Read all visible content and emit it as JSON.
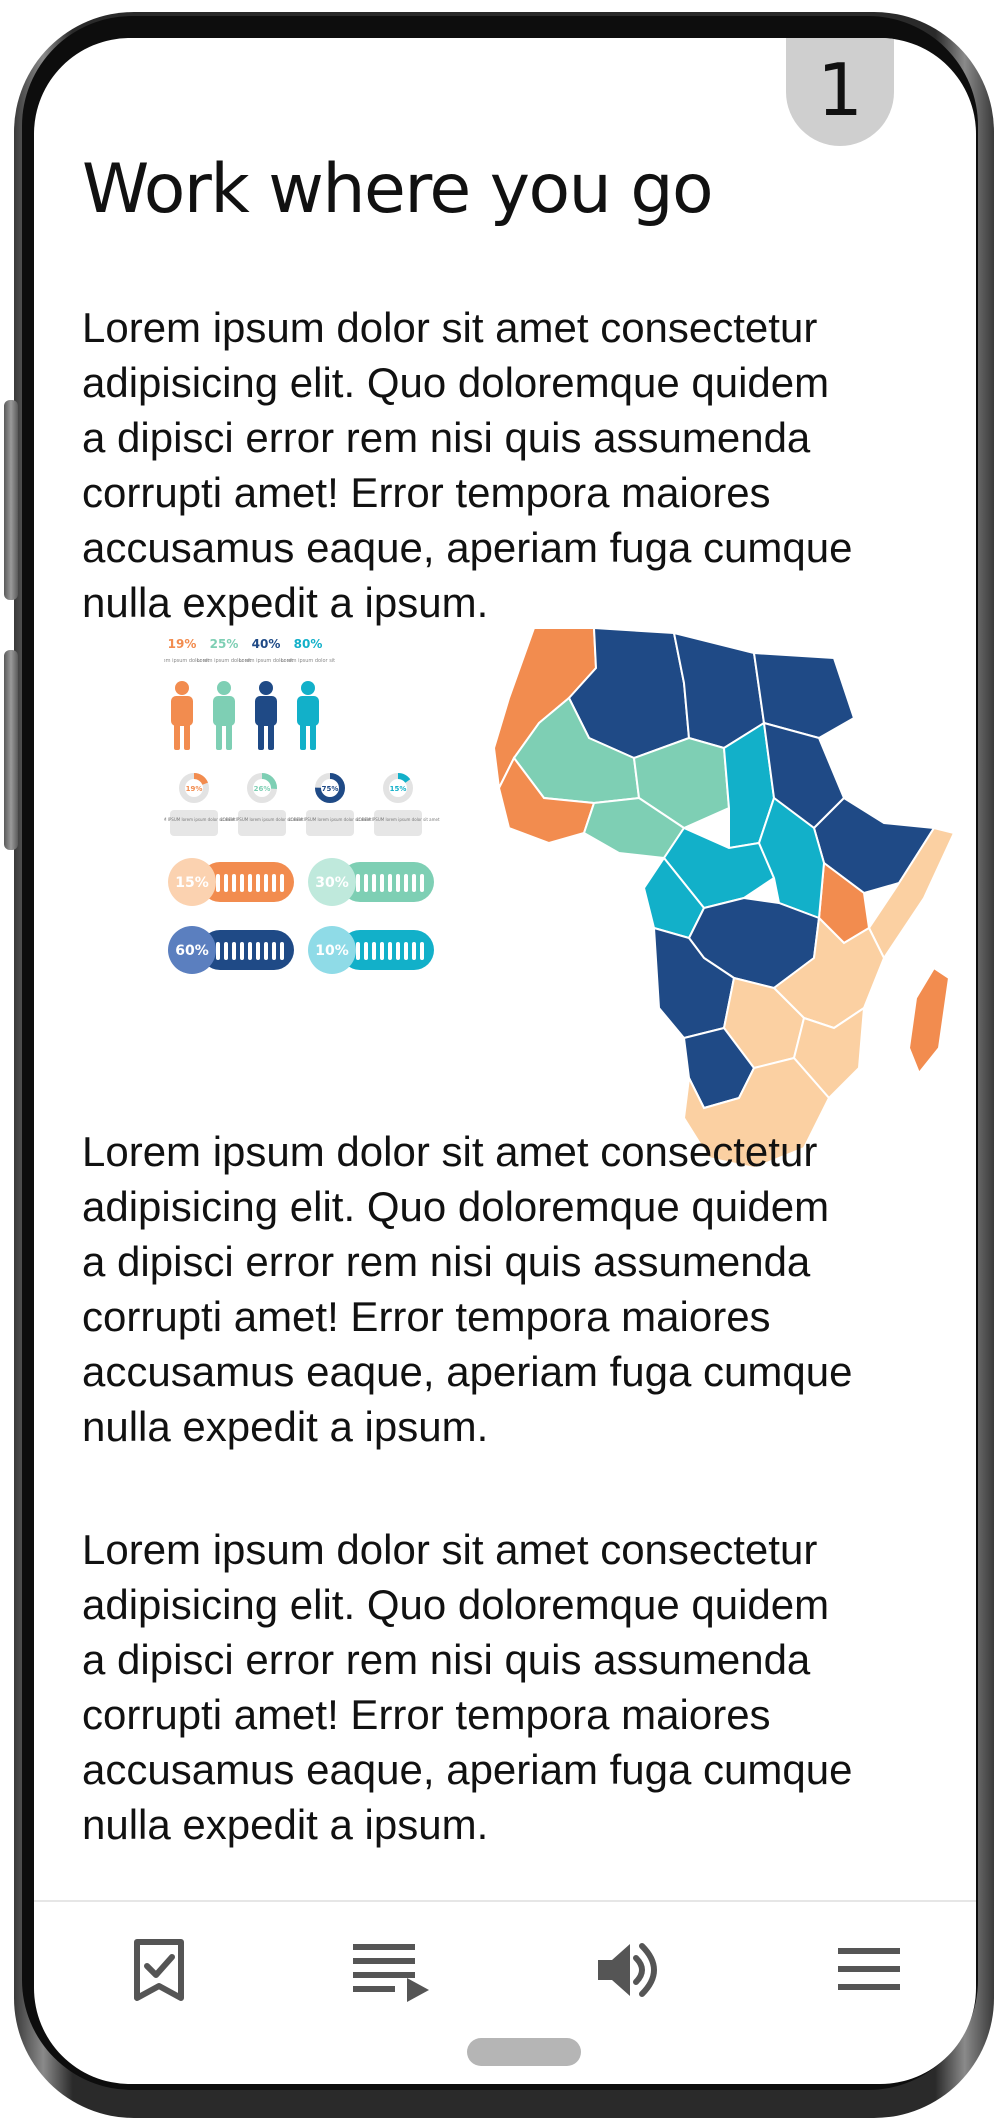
{
  "page": {
    "number": "1",
    "title": "Work where you go"
  },
  "paragraphs": [
    "Lorem ipsum dolor sit amet consectetur\n adipisicing elit. Quo doloremque quidem\na dipisci error rem nisi quis assumenda\ncorrupti amet! Error tempora maiores\naccusamus eaque, aperiam fuga cumque\nnulla expedit a ipsum.",
    "Lorem ipsum dolor sit amet consectetur\n adipisicing elit. Quo doloremque quidem\na dipisci error rem nisi quis assumenda\ncorrupti amet! Error tempora maiores\naccusamus eaque, aperiam fuga cumque\nnulla expedit a ipsum.",
    "Lorem ipsum dolor sit amet consectetur\n adipisicing elit. Quo doloremque quidem\na dipisci error rem nisi quis assumenda\ncorrupti amet! Error tempora maiores\naccusamus eaque, aperiam fuga cumque\nnulla expedit a ipsum."
  ],
  "infographic": {
    "people": [
      {
        "pct": "19%",
        "color": "#f28c4f",
        "caption": "Lorem ipsum dolor sit"
      },
      {
        "pct": "25%",
        "color": "#7ecfb4",
        "caption": "Lorem ipsum dolor sit"
      },
      {
        "pct": "40%",
        "color": "#1f4a86",
        "caption": "Lorem ipsum dolor sit"
      },
      {
        "pct": "80%",
        "color": "#12b0c9",
        "caption": "Lorem ipsum dolor sit"
      }
    ],
    "donuts": [
      {
        "pct": "19%",
        "value": 19,
        "color": "#f28c4f",
        "caption": "LOREM IPSUM lorem ipsum dolor sit amet"
      },
      {
        "pct": "26%",
        "value": 26,
        "color": "#7ecfb4",
        "caption": "LOREM IPSUM lorem ipsum dolor sit amet"
      },
      {
        "pct": "75%",
        "value": 75,
        "color": "#1f4a86",
        "caption": "LOREM IPSUM lorem ipsum dolor sit amet"
      },
      {
        "pct": "15%",
        "value": 15,
        "color": "#12b0c9",
        "caption": "LOREM IPSUM lorem ipsum dolor sit amet"
      }
    ],
    "pills": [
      {
        "pct": "15%",
        "color": "#f28c4f",
        "light": "#fbd2b0"
      },
      {
        "pct": "30%",
        "color": "#7ecfb4",
        "light": "#bfe9dc"
      },
      {
        "pct": "60%",
        "color": "#1f4a86",
        "light": "#5b7fbf"
      },
      {
        "pct": "10%",
        "color": "#12b0c9",
        "light": "#8fdbe7"
      }
    ],
    "map_colors": {
      "orange": "#f28c4f",
      "mint": "#7ecfb4",
      "navy": "#1f4a86",
      "cyan": "#12b0c9",
      "peach": "#fbd0a2"
    }
  },
  "nav": {
    "bookmark": "bookmark-check-icon",
    "playlist": "playlist-play-icon",
    "volume": "volume-icon",
    "menu": "menu-icon"
  }
}
